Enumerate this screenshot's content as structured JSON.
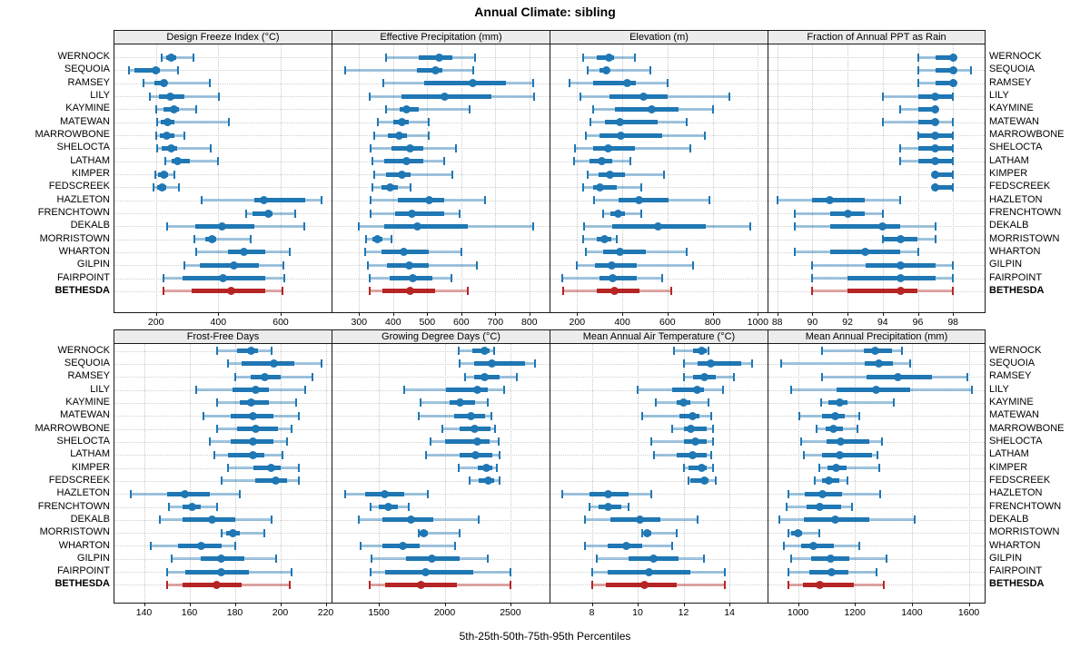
{
  "chart_data": {
    "type": "dot-whisker-percentiles",
    "title": "Annual Climate: sibling",
    "footer": "5th-25th-50th-75th-95th Percentiles",
    "percentiles": [
      5,
      25,
      50,
      75,
      95
    ],
    "legend_position": "bottom-center",
    "grid": "dotted",
    "locations": [
      "WERNOCK",
      "SEQUOIA",
      "RAMSEY",
      "LILY",
      "KAYMINE",
      "MATEWAN",
      "MARROWBONE",
      "SHELOCTA",
      "LATHAM",
      "KIMPER",
      "FEDSCREEK",
      "HAZLETON",
      "FRENCHTOWN",
      "DEKALB",
      "MORRISTOWN",
      "WHARTON",
      "GILPIN",
      "FAIRPOINT",
      "BETHESDA"
    ],
    "highlight_location": "BETHESDA",
    "colors": {
      "series": "#1f77b4",
      "series_light": "rgba(31,119,180,0.42)",
      "highlight": "#b52524",
      "highlight_light": "rgba(181,37,36,0.40)",
      "header_bg": "#ececec",
      "grid_line": "#c8c8c8",
      "border": "#1a1a1a"
    },
    "panels": [
      {
        "title": "Design Freeze Index (°C)",
        "grid": 0,
        "col": 0,
        "xmin": 67,
        "xmax": 766,
        "ticks": [
          200,
          400,
          600
        ],
        "values": [
          [
            218,
            233,
            248,
            264,
            320
          ],
          [
            113,
            130,
            198,
            213,
            270
          ],
          [
            160,
            195,
            225,
            237,
            373
          ],
          [
            180,
            210,
            245,
            290,
            403
          ],
          [
            200,
            225,
            257,
            274,
            330
          ],
          [
            203,
            215,
            237,
            259,
            433
          ],
          [
            202,
            213,
            235,
            259,
            292
          ],
          [
            205,
            217,
            248,
            269,
            376
          ],
          [
            230,
            250,
            270,
            310,
            400
          ],
          [
            198,
            208,
            225,
            240,
            260
          ],
          [
            193,
            205,
            220,
            233,
            274
          ],
          [
            345,
            515,
            545,
            680,
            730
          ],
          [
            490,
            510,
            560,
            575,
            645
          ],
          [
            237,
            326,
            411,
            517,
            677
          ],
          [
            322,
            358,
            380,
            393,
            505
          ],
          [
            330,
            430,
            482,
            550,
            630
          ],
          [
            290,
            340,
            450,
            530,
            610
          ],
          [
            225,
            285,
            415,
            550,
            612
          ],
          [
            225,
            315,
            440,
            550,
            605
          ]
        ]
      },
      {
        "title": "Effective Precipitation (mm)",
        "grid": 0,
        "col": 1,
        "xmin": 222,
        "xmax": 862,
        "ticks": [
          300,
          400,
          500,
          600,
          700,
          800
        ],
        "values": [
          [
            380,
            475,
            535,
            575,
            640
          ],
          [
            260,
            470,
            525,
            545,
            635
          ],
          [
            370,
            490,
            635,
            730,
            810
          ],
          [
            330,
            425,
            550,
            690,
            815
          ],
          [
            380,
            420,
            440,
            475,
            625
          ],
          [
            355,
            400,
            425,
            445,
            505
          ],
          [
            345,
            385,
            417,
            442,
            505
          ],
          [
            335,
            395,
            450,
            490,
            585
          ],
          [
            340,
            375,
            440,
            490,
            550
          ],
          [
            345,
            380,
            427,
            452,
            575
          ],
          [
            340,
            365,
            390,
            415,
            450
          ],
          [
            335,
            415,
            505,
            550,
            670
          ],
          [
            335,
            405,
            455,
            550,
            595
          ],
          [
            300,
            375,
            470,
            620,
            810
          ],
          [
            320,
            340,
            353,
            368,
            395
          ],
          [
            317,
            366,
            430,
            504,
            600
          ],
          [
            327,
            381,
            446,
            504,
            645
          ],
          [
            330,
            390,
            459,
            514,
            570
          ],
          [
            330,
            369,
            450,
            524,
            618
          ]
        ]
      },
      {
        "title": "Elevation (m)",
        "grid": 0,
        "col": 2,
        "xmin": 82,
        "xmax": 1047,
        "ticks": [
          200,
          400,
          600,
          800,
          1000
        ],
        "values": [
          [
            225,
            285,
            340,
            365,
            455
          ],
          [
            245,
            300,
            330,
            343,
            525
          ],
          [
            165,
            270,
            420,
            460,
            600
          ],
          [
            215,
            345,
            495,
            600,
            875
          ],
          [
            270,
            367,
            530,
            650,
            800
          ],
          [
            260,
            325,
            390,
            555,
            685
          ],
          [
            240,
            300,
            395,
            575,
            765
          ],
          [
            190,
            270,
            336,
            456,
            700
          ],
          [
            187,
            253,
            307,
            356,
            435
          ],
          [
            245,
            293,
            347,
            413,
            585
          ],
          [
            227,
            270,
            300,
            376,
            485
          ],
          [
            275,
            385,
            475,
            605,
            785
          ],
          [
            315,
            347,
            380,
            413,
            485
          ],
          [
            230,
            355,
            560,
            770,
            965
          ],
          [
            225,
            285,
            320,
            350,
            375
          ],
          [
            240,
            315,
            390,
            505,
            685
          ],
          [
            200,
            280,
            353,
            463,
            715
          ],
          [
            135,
            300,
            356,
            465,
            575
          ],
          [
            140,
            285,
            365,
            475,
            615
          ]
        ]
      },
      {
        "title": "Fraction of Annual PPT as Rain",
        "grid": 0,
        "col": 3,
        "xmin": 87.5,
        "xmax": 99.9,
        "ticks": [
          88,
          90,
          92,
          94,
          96,
          98
        ],
        "values": [
          [
            96,
            97,
            98,
            98,
            98
          ],
          [
            96,
            97,
            98,
            98,
            99
          ],
          [
            96,
            97,
            98,
            98,
            98
          ],
          [
            94,
            96,
            97,
            98,
            98
          ],
          [
            95,
            96,
            97,
            97,
            97
          ],
          [
            94,
            96,
            97,
            97,
            98
          ],
          [
            96,
            96,
            97,
            98,
            98
          ],
          [
            95,
            96,
            97,
            98,
            98
          ],
          [
            95,
            96,
            97,
            98,
            98
          ],
          [
            97,
            97,
            97,
            98,
            98
          ],
          [
            97,
            97,
            97,
            98,
            98
          ],
          [
            88,
            90,
            91,
            93,
            95
          ],
          [
            89,
            91,
            92,
            93,
            94
          ],
          [
            89,
            91,
            94,
            95,
            97
          ],
          [
            94,
            94,
            95,
            96,
            97
          ],
          [
            89,
            91,
            93,
            95,
            96
          ],
          [
            90,
            93,
            95,
            97,
            98
          ],
          [
            90,
            92,
            95,
            97,
            98
          ],
          [
            90,
            92,
            95,
            96,
            98
          ]
        ]
      },
      {
        "title": "Frost-Free Days",
        "grid": 1,
        "col": 0,
        "xmin": 127,
        "xmax": 223,
        "ticks": [
          140,
          160,
          180,
          200,
          220
        ],
        "values": [
          [
            172,
            181,
            187,
            190,
            196
          ],
          [
            177,
            183,
            197,
            206,
            218
          ],
          [
            180,
            187,
            193,
            200,
            214
          ],
          [
            163,
            179,
            189,
            195,
            211
          ],
          [
            172,
            182,
            187,
            195,
            207
          ],
          [
            166,
            178,
            188,
            197,
            208
          ],
          [
            172,
            181,
            189,
            199,
            205
          ],
          [
            169,
            178,
            188,
            197,
            203
          ],
          [
            171,
            177,
            188,
            193,
            201
          ],
          [
            177,
            188,
            196,
            200,
            208
          ],
          [
            174,
            189,
            198,
            203,
            208
          ],
          [
            134,
            150,
            158,
            169,
            182
          ],
          [
            151,
            157,
            161,
            165,
            172
          ],
          [
            147,
            157,
            170,
            180,
            196
          ],
          [
            174,
            176,
            179,
            182,
            193
          ],
          [
            143,
            155,
            165,
            174,
            180
          ],
          [
            152,
            165,
            174,
            184,
            198
          ],
          [
            150,
            158,
            174,
            186,
            205
          ],
          [
            150,
            157,
            172,
            183,
            204
          ]
        ]
      },
      {
        "title": "Growing Degree Days (°C)",
        "grid": 1,
        "col": 1,
        "xmin": 1148,
        "xmax": 2804,
        "ticks": [
          1500,
          2000,
          2500
        ],
        "values": [
          [
            2110,
            2210,
            2300,
            2345,
            2375
          ],
          [
            2115,
            2225,
            2360,
            2610,
            2685
          ],
          [
            2155,
            2225,
            2300,
            2420,
            2550
          ],
          [
            1695,
            2010,
            2250,
            2325,
            2450
          ],
          [
            1820,
            2040,
            2115,
            2230,
            2330
          ],
          [
            1800,
            2070,
            2200,
            2310,
            2355
          ],
          [
            1985,
            2115,
            2230,
            2350,
            2385
          ],
          [
            1890,
            2005,
            2245,
            2345,
            2410
          ],
          [
            1855,
            2115,
            2235,
            2365,
            2415
          ],
          [
            2105,
            2250,
            2315,
            2365,
            2395
          ],
          [
            2190,
            2260,
            2330,
            2375,
            2415
          ],
          [
            1245,
            1395,
            1545,
            1690,
            1870
          ],
          [
            1440,
            1500,
            1575,
            1645,
            1725
          ],
          [
            1350,
            1525,
            1745,
            1915,
            2260
          ],
          [
            1800,
            1810,
            1840,
            1875,
            2115
          ],
          [
            1365,
            1525,
            1685,
            1810,
            2080
          ],
          [
            1445,
            1705,
            1900,
            2115,
            2325
          ],
          [
            1440,
            1550,
            1855,
            2215,
            2500
          ],
          [
            1430,
            1550,
            1820,
            2095,
            2500
          ]
        ]
      },
      {
        "title": "Mean Annual Air Temperature (°C)",
        "grid": 1,
        "col": 2,
        "xmin": 6.2,
        "xmax": 15.7,
        "ticks": [
          8,
          10,
          12,
          14
        ],
        "values": [
          [
            11.6,
            12.4,
            12.8,
            13.0,
            13.1
          ],
          [
            12.0,
            12.6,
            13.2,
            14.5,
            15.0
          ],
          [
            12.0,
            12.4,
            12.9,
            13.4,
            14.2
          ],
          [
            10.0,
            11.5,
            12.6,
            12.9,
            13.7
          ],
          [
            10.8,
            11.7,
            12.0,
            12.3,
            13.1
          ],
          [
            10.2,
            11.8,
            12.4,
            12.7,
            13.2
          ],
          [
            11.5,
            12.0,
            12.3,
            13.0,
            13.3
          ],
          [
            10.6,
            12.0,
            12.5,
            13.0,
            13.3
          ],
          [
            10.7,
            11.7,
            12.4,
            13.0,
            13.2
          ],
          [
            12.0,
            12.2,
            12.8,
            13.0,
            13.3
          ],
          [
            12.2,
            12.3,
            12.9,
            13.1,
            13.4
          ],
          [
            6.7,
            7.9,
            8.7,
            9.6,
            10.6
          ],
          [
            7.9,
            8.3,
            8.7,
            9.3,
            9.6
          ],
          [
            7.7,
            8.8,
            10.1,
            11.0,
            12.6
          ],
          [
            10.2,
            10.3,
            10.4,
            10.6,
            11.7
          ],
          [
            7.7,
            8.7,
            9.5,
            10.2,
            11.5
          ],
          [
            8.2,
            9.6,
            10.7,
            11.8,
            12.9
          ],
          [
            8.0,
            8.7,
            10.5,
            12.3,
            13.8
          ],
          [
            8.0,
            8.6,
            10.3,
            11.7,
            13.8
          ]
        ]
      },
      {
        "title": "Mean Annual Precipitation (mm)",
        "grid": 1,
        "col": 3,
        "xmin": 896,
        "xmax": 1662,
        "ticks": [
          1000,
          1200,
          1400,
          1600
        ],
        "values": [
          [
            1085,
            1230,
            1270,
            1330,
            1365
          ],
          [
            940,
            1235,
            1285,
            1335,
            1395
          ],
          [
            1085,
            1240,
            1350,
            1470,
            1595
          ],
          [
            975,
            1135,
            1275,
            1395,
            1610
          ],
          [
            1080,
            1105,
            1145,
            1175,
            1335
          ],
          [
            1005,
            1085,
            1130,
            1165,
            1215
          ],
          [
            1065,
            1097,
            1125,
            1158,
            1210
          ],
          [
            1010,
            1100,
            1150,
            1250,
            1295
          ],
          [
            1020,
            1085,
            1145,
            1260,
            1280
          ],
          [
            1075,
            1103,
            1135,
            1172,
            1285
          ],
          [
            1060,
            1085,
            1107,
            1145,
            1172
          ],
          [
            965,
            1025,
            1085,
            1155,
            1290
          ],
          [
            960,
            1030,
            1075,
            1150,
            1190
          ],
          [
            935,
            1020,
            1130,
            1250,
            1410
          ],
          [
            965,
            975,
            1000,
            1015,
            1075
          ],
          [
            950,
            1010,
            1055,
            1125,
            1215
          ],
          [
            975,
            1045,
            1113,
            1180,
            1310
          ],
          [
            965,
            1040,
            1118,
            1177,
            1275
          ],
          [
            965,
            1017,
            1075,
            1196,
            1300
          ]
        ]
      }
    ]
  }
}
